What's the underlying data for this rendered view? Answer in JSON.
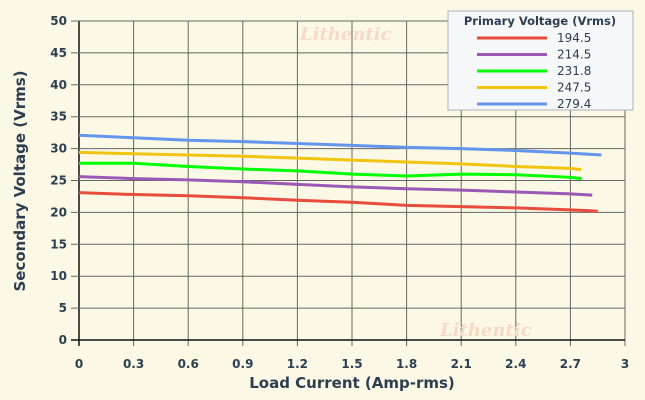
{
  "watermark": "Lithentic",
  "chart_data": {
    "type": "line",
    "xlabel": "Load Current (Amp-rms)",
    "ylabel": "Secondary Voltage (Vrms)",
    "xlim": [
      0,
      3
    ],
    "ylim": [
      0,
      50
    ],
    "xticks": [
      "0",
      "0.3",
      "0.6",
      "0.9",
      "1.2",
      "1.5",
      "1.8",
      "2.1",
      "2.4",
      "2.7",
      "3"
    ],
    "yticks": [
      "0",
      "5",
      "10",
      "15",
      "20",
      "25",
      "30",
      "35",
      "40",
      "45",
      "50"
    ],
    "grid": true,
    "legend": {
      "title": "Primary Voltage (Vrms)",
      "placement": "top-right"
    },
    "series": [
      {
        "name": "194.5",
        "color": "#e74c3c",
        "x": [
          0,
          0.3,
          0.6,
          0.9,
          1.2,
          1.5,
          1.8,
          2.1,
          2.4,
          2.7,
          2.85
        ],
        "y": [
          23.1,
          22.8,
          22.6,
          22.3,
          21.9,
          21.6,
          21.1,
          20.9,
          20.7,
          20.4,
          20.2
        ]
      },
      {
        "name": "214.5",
        "color": "#9b59b6",
        "x": [
          0,
          0.3,
          0.6,
          0.9,
          1.2,
          1.5,
          1.8,
          2.1,
          2.4,
          2.7,
          2.82
        ],
        "y": [
          25.6,
          25.3,
          25.1,
          24.8,
          24.4,
          24.0,
          23.7,
          23.5,
          23.2,
          22.9,
          22.7
        ]
      },
      {
        "name": "231.8",
        "color": "#00ff00",
        "x": [
          0,
          0.3,
          0.6,
          0.9,
          1.2,
          1.5,
          1.8,
          2.1,
          2.4,
          2.7,
          2.76
        ],
        "y": [
          27.7,
          27.7,
          27.2,
          26.8,
          26.5,
          26.0,
          25.7,
          26.0,
          25.9,
          25.5,
          25.3
        ]
      },
      {
        "name": "247.5",
        "color": "#f1c40f",
        "x": [
          0,
          0.3,
          0.6,
          0.9,
          1.2,
          1.5,
          1.8,
          2.1,
          2.4,
          2.7,
          2.76
        ],
        "y": [
          29.4,
          29.2,
          29.0,
          28.8,
          28.5,
          28.2,
          27.9,
          27.6,
          27.2,
          26.9,
          26.7
        ]
      },
      {
        "name": "279.4",
        "color": "#6495ed",
        "x": [
          0,
          0.3,
          0.6,
          0.9,
          1.2,
          1.5,
          1.8,
          2.1,
          2.4,
          2.7,
          2.87
        ],
        "y": [
          32.1,
          31.7,
          31.3,
          31.1,
          30.8,
          30.5,
          30.2,
          30.0,
          29.7,
          29.3,
          29.0
        ]
      }
    ]
  }
}
